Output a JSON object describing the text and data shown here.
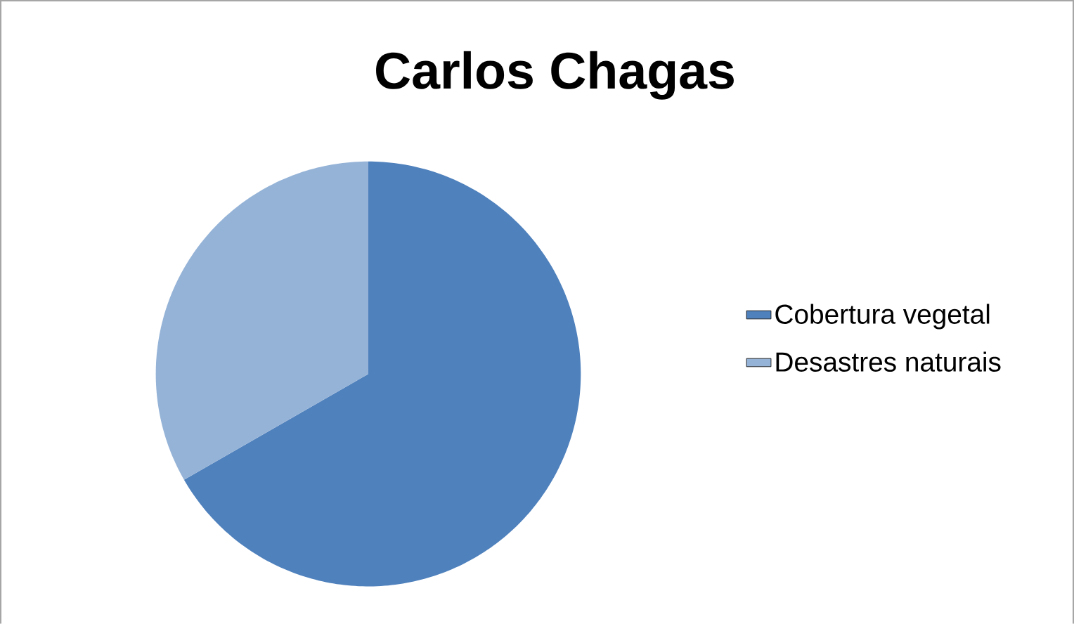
{
  "chart_data": {
    "type": "pie",
    "title": "Carlos Chagas",
    "categories": [
      "Cobertura vegetal",
      "Desastres naturais"
    ],
    "values": [
      66.7,
      33.3
    ],
    "colors": [
      "#4f81bd",
      "#95b3d7"
    ],
    "legend": "right"
  }
}
